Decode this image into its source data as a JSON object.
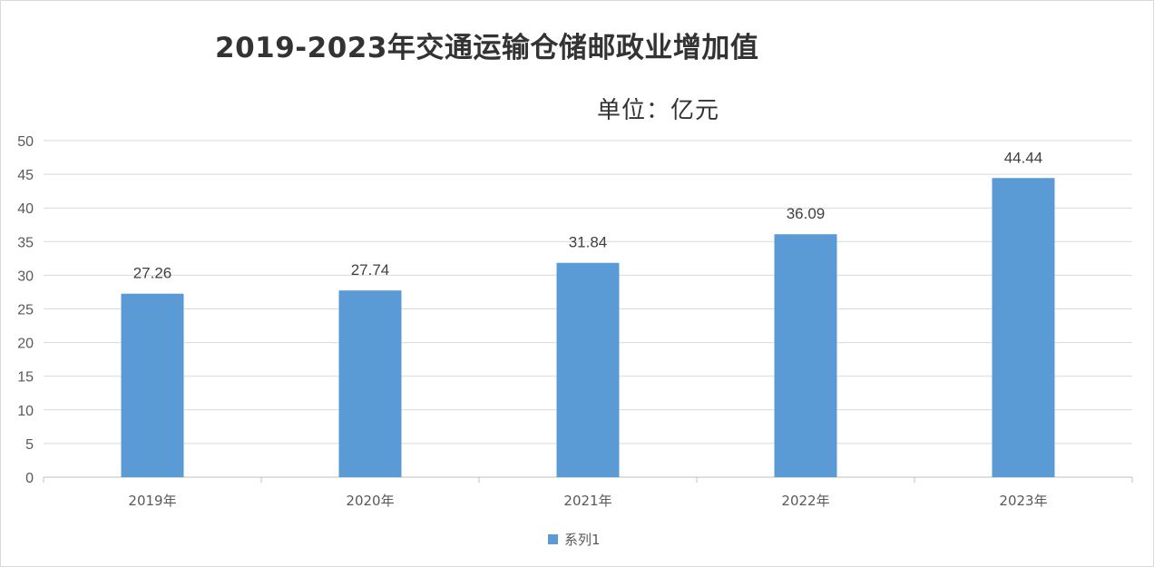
{
  "chart_data": {
    "type": "bar",
    "title": "2019-2023年交通运输仓储邮政业增加值",
    "subtitle": "单位：亿元",
    "categories": [
      "2019年",
      "2020年",
      "2021年",
      "2022年",
      "2023年"
    ],
    "series": [
      {
        "name": "系列1",
        "values": [
          27.26,
          27.74,
          31.84,
          36.09,
          44.44
        ],
        "color": "#5b9bd5"
      }
    ],
    "data_labels": [
      "27.26",
      "27.74",
      "31.84",
      "36.09",
      "44.44"
    ],
    "ylim": [
      0,
      50
    ],
    "yticks": [
      "0",
      "5",
      "10",
      "15",
      "20",
      "25",
      "30",
      "35",
      "40",
      "45",
      "50"
    ],
    "grid": true,
    "legend": "bottom",
    "xlabel": "",
    "ylabel": ""
  },
  "colors": {
    "bar": "#5b9bd5",
    "grid": "#d9d9d9",
    "axis": "#bfbfbf",
    "text": "#595959"
  }
}
